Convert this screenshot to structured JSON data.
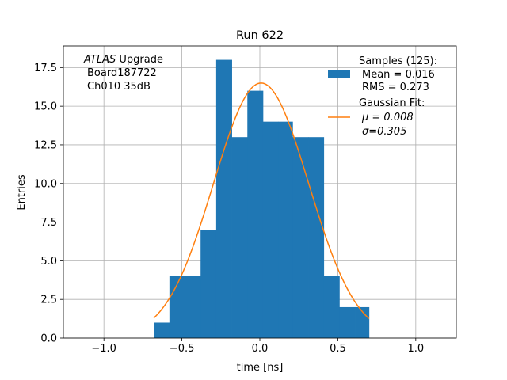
{
  "chart_data": {
    "type": "bar",
    "title": "Run 622",
    "xlabel": "time [ns]",
    "ylabel": "Entries",
    "xlim": [
      -1.26,
      1.26
    ],
    "ylim": [
      0,
      18.9
    ],
    "grid": true,
    "x_ticks": [
      -1.0,
      -0.5,
      0.0,
      0.5,
      1.0
    ],
    "x_tick_labels": [
      "−1.0",
      "−0.5",
      "0.0",
      "0.5",
      "1.0"
    ],
    "y_ticks": [
      0.0,
      2.5,
      5.0,
      7.5,
      10.0,
      12.5,
      15.0,
      17.5
    ],
    "y_tick_labels": [
      "0.0",
      "2.5",
      "5.0",
      "7.5",
      "10.0",
      "12.5",
      "15.0",
      "17.5"
    ],
    "histogram": {
      "color": "#1f77b4",
      "bins": [
        {
          "x0": -0.68,
          "x1": -0.58,
          "count": 1
        },
        {
          "x0": -0.58,
          "x1": -0.48,
          "count": 4
        },
        {
          "x0": -0.48,
          "x1": -0.38,
          "count": 4
        },
        {
          "x0": -0.38,
          "x1": -0.28,
          "count": 7
        },
        {
          "x0": -0.28,
          "x1": -0.18,
          "count": 18
        },
        {
          "x0": -0.18,
          "x1": -0.08,
          "count": 13
        },
        {
          "x0": -0.08,
          "x1": 0.02,
          "count": 16
        },
        {
          "x0": 0.02,
          "x1": 0.12,
          "count": 14
        },
        {
          "x0": 0.12,
          "x1": 0.21,
          "count": 14
        },
        {
          "x0": 0.21,
          "x1": 0.31,
          "count": 13
        },
        {
          "x0": 0.31,
          "x1": 0.41,
          "count": 13
        },
        {
          "x0": 0.41,
          "x1": 0.51,
          "count": 4
        },
        {
          "x0": 0.51,
          "x1": 0.61,
          "count": 2
        },
        {
          "x0": 0.61,
          "x1": 0.7,
          "count": 2
        }
      ]
    },
    "fit": {
      "color": "#ff7f0e",
      "amplitude": 16.5,
      "mu": 0.008,
      "sigma": 0.305,
      "x_range": [
        -0.68,
        0.7
      ]
    },
    "legend": {
      "placement": "top-right",
      "samples_title": "Samples (125):",
      "samples_mean": "Mean = 0.016",
      "samples_rms": "RMS = 0.273",
      "fit_title": "Gaussian Fit:",
      "fit_mu": "μ = 0.008",
      "fit_sigma": "σ=0.305"
    },
    "annotation": {
      "line1_italic": "ATLAS",
      "line1_rest": " Upgrade",
      "line2": "Board187722",
      "line3": "Ch010 35dB"
    }
  }
}
